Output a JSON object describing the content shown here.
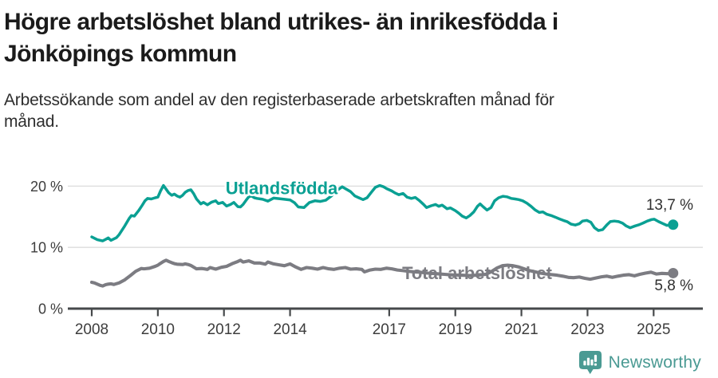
{
  "header": {
    "title_lines": [
      "Högre arbetslöshet bland utrikes- än inrikesfödda i",
      "Jönköpings kommun"
    ],
    "subtitle_lines": [
      "Arbetssökande som andel av den registerbaserade arbetskraften månad för",
      "månad."
    ]
  },
  "chart_data": {
    "type": "line",
    "title": "Högre arbetslöshet bland utrikes- än inrikesfödda i Jönköpings kommun",
    "subtitle": "Arbetssökande som andel av den registerbaserade arbetskraften månad för månad.",
    "unit": "%",
    "grid": "horizontal",
    "legend_position": "inline-labels",
    "xlim": [
      2007.6,
      2026.4
    ],
    "ylim": [
      0,
      22
    ],
    "x_ticks": [
      {
        "value": 2008,
        "label": "2008"
      },
      {
        "value": 2010,
        "label": "2010"
      },
      {
        "value": 2012,
        "label": "2012"
      },
      {
        "value": 2014,
        "label": "2014"
      },
      {
        "value": 2017,
        "label": "2017"
      },
      {
        "value": 2019,
        "label": "2019"
      },
      {
        "value": 2021,
        "label": "2021"
      },
      {
        "value": 2023,
        "label": "2023"
      },
      {
        "value": 2025,
        "label": "2025"
      }
    ],
    "y_ticks": [
      {
        "value": 0,
        "label": "0 %"
      },
      {
        "value": 10,
        "label": "10 %"
      },
      {
        "value": 20,
        "label": "20 %"
      }
    ],
    "colors": {
      "utlandsfodda": "#0aa093",
      "total": "#7c7c82",
      "axis": "#46494b",
      "gridline": "#dcdcdc",
      "brand": "#4a9a93"
    },
    "series": [
      {
        "name": "Utlandsfödda",
        "color": "#0aa093",
        "end_label": "13,7 %",
        "end_value": 13.7,
        "points": [
          [
            2008.0,
            11.7
          ],
          [
            2008.17,
            11.25
          ],
          [
            2008.33,
            11.05
          ],
          [
            2008.42,
            11.3
          ],
          [
            2008.5,
            11.55
          ],
          [
            2008.58,
            11.15
          ],
          [
            2008.75,
            11.6
          ],
          [
            2008.83,
            12.1
          ],
          [
            2009.0,
            13.5
          ],
          [
            2009.13,
            14.7
          ],
          [
            2009.2,
            15.2
          ],
          [
            2009.29,
            15.1
          ],
          [
            2009.42,
            16.0
          ],
          [
            2009.53,
            16.9
          ],
          [
            2009.61,
            17.6
          ],
          [
            2009.69,
            18.0
          ],
          [
            2009.8,
            17.9
          ],
          [
            2009.92,
            18.1
          ],
          [
            2010.0,
            18.2
          ],
          [
            2010.08,
            19.2
          ],
          [
            2010.17,
            20.1
          ],
          [
            2010.25,
            19.5
          ],
          [
            2010.33,
            18.9
          ],
          [
            2010.42,
            18.5
          ],
          [
            2010.5,
            18.7
          ],
          [
            2010.58,
            18.4
          ],
          [
            2010.67,
            18.2
          ],
          [
            2010.75,
            18.5
          ],
          [
            2010.83,
            19.0
          ],
          [
            2010.92,
            19.3
          ],
          [
            2011.0,
            19.4
          ],
          [
            2011.08,
            18.8
          ],
          [
            2011.17,
            17.9
          ],
          [
            2011.3,
            17.1
          ],
          [
            2011.38,
            17.35
          ],
          [
            2011.5,
            16.95
          ],
          [
            2011.63,
            17.4
          ],
          [
            2011.75,
            17.6
          ],
          [
            2011.83,
            17.15
          ],
          [
            2011.96,
            17.35
          ],
          [
            2012.08,
            16.75
          ],
          [
            2012.2,
            17.0
          ],
          [
            2012.3,
            17.35
          ],
          [
            2012.42,
            16.65
          ],
          [
            2012.5,
            16.6
          ],
          [
            2012.58,
            17.0
          ],
          [
            2012.67,
            17.7
          ],
          [
            2012.75,
            18.25
          ],
          [
            2012.83,
            18.4
          ],
          [
            2012.92,
            18.1
          ],
          [
            2013.0,
            18.0
          ],
          [
            2013.17,
            17.85
          ],
          [
            2013.33,
            17.55
          ],
          [
            2013.5,
            18.05
          ],
          [
            2013.67,
            17.95
          ],
          [
            2013.83,
            17.85
          ],
          [
            2014.0,
            17.75
          ],
          [
            2014.13,
            17.3
          ],
          [
            2014.25,
            16.6
          ],
          [
            2014.42,
            16.5
          ],
          [
            2014.58,
            17.3
          ],
          [
            2014.75,
            17.6
          ],
          [
            2014.92,
            17.5
          ],
          [
            2015.08,
            17.7
          ],
          [
            2015.25,
            18.4
          ],
          [
            2015.42,
            19.3
          ],
          [
            2015.58,
            19.9
          ],
          [
            2015.67,
            19.6
          ],
          [
            2015.83,
            19.1
          ],
          [
            2015.96,
            18.4
          ],
          [
            2016.08,
            18.1
          ],
          [
            2016.21,
            17.8
          ],
          [
            2016.33,
            18.1
          ],
          [
            2016.46,
            19.0
          ],
          [
            2016.58,
            19.8
          ],
          [
            2016.71,
            20.1
          ],
          [
            2016.83,
            19.9
          ],
          [
            2016.92,
            19.6
          ],
          [
            2017.08,
            19.2
          ],
          [
            2017.17,
            18.9
          ],
          [
            2017.29,
            18.6
          ],
          [
            2017.42,
            18.8
          ],
          [
            2017.54,
            18.2
          ],
          [
            2017.67,
            18.0
          ],
          [
            2017.79,
            18.15
          ],
          [
            2017.92,
            17.6
          ],
          [
            2018.04,
            17.0
          ],
          [
            2018.13,
            16.5
          ],
          [
            2018.27,
            16.8
          ],
          [
            2018.4,
            17.0
          ],
          [
            2018.5,
            16.7
          ],
          [
            2018.6,
            16.9
          ],
          [
            2018.75,
            16.3
          ],
          [
            2018.85,
            16.45
          ],
          [
            2019.0,
            16.0
          ],
          [
            2019.1,
            15.6
          ],
          [
            2019.21,
            15.1
          ],
          [
            2019.33,
            14.8
          ],
          [
            2019.44,
            15.2
          ],
          [
            2019.56,
            15.8
          ],
          [
            2019.67,
            16.7
          ],
          [
            2019.75,
            17.1
          ],
          [
            2019.85,
            16.6
          ],
          [
            2019.96,
            16.1
          ],
          [
            2020.08,
            16.5
          ],
          [
            2020.19,
            17.6
          ],
          [
            2020.31,
            18.1
          ],
          [
            2020.44,
            18.35
          ],
          [
            2020.56,
            18.25
          ],
          [
            2020.69,
            18.0
          ],
          [
            2020.81,
            17.9
          ],
          [
            2020.92,
            17.8
          ],
          [
            2021.04,
            17.6
          ],
          [
            2021.17,
            17.2
          ],
          [
            2021.29,
            16.7
          ],
          [
            2021.42,
            16.1
          ],
          [
            2021.54,
            15.7
          ],
          [
            2021.65,
            15.8
          ],
          [
            2021.77,
            15.4
          ],
          [
            2021.9,
            15.2
          ],
          [
            2022.02,
            14.95
          ],
          [
            2022.15,
            14.65
          ],
          [
            2022.27,
            14.4
          ],
          [
            2022.38,
            14.2
          ],
          [
            2022.5,
            13.8
          ],
          [
            2022.63,
            13.65
          ],
          [
            2022.75,
            13.85
          ],
          [
            2022.85,
            14.3
          ],
          [
            2022.98,
            14.4
          ],
          [
            2023.1,
            14.1
          ],
          [
            2023.21,
            13.2
          ],
          [
            2023.33,
            12.75
          ],
          [
            2023.46,
            12.9
          ],
          [
            2023.58,
            13.65
          ],
          [
            2023.69,
            14.2
          ],
          [
            2023.81,
            14.3
          ],
          [
            2023.94,
            14.2
          ],
          [
            2024.06,
            13.95
          ],
          [
            2024.17,
            13.5
          ],
          [
            2024.29,
            13.2
          ],
          [
            2024.44,
            13.5
          ],
          [
            2024.56,
            13.7
          ],
          [
            2024.69,
            14.0
          ],
          [
            2024.81,
            14.3
          ],
          [
            2024.94,
            14.55
          ],
          [
            2025.02,
            14.6
          ],
          [
            2025.15,
            14.2
          ],
          [
            2025.27,
            13.9
          ],
          [
            2025.4,
            13.6
          ],
          [
            2025.59,
            13.7
          ]
        ]
      },
      {
        "name": "Total arbetslöshet",
        "color": "#7c7c82",
        "end_label": "5,8 %",
        "end_value": 5.8,
        "points": [
          [
            2008.0,
            4.3
          ],
          [
            2008.08,
            4.2
          ],
          [
            2008.25,
            3.8
          ],
          [
            2008.33,
            3.7
          ],
          [
            2008.42,
            3.9
          ],
          [
            2008.5,
            4.0
          ],
          [
            2008.58,
            4.05
          ],
          [
            2008.67,
            3.95
          ],
          [
            2008.83,
            4.2
          ],
          [
            2009.0,
            4.7
          ],
          [
            2009.17,
            5.4
          ],
          [
            2009.33,
            6.1
          ],
          [
            2009.5,
            6.55
          ],
          [
            2009.58,
            6.5
          ],
          [
            2009.75,
            6.6
          ],
          [
            2009.92,
            6.9
          ],
          [
            2010.0,
            7.1
          ],
          [
            2010.08,
            7.4
          ],
          [
            2010.17,
            7.7
          ],
          [
            2010.25,
            7.9
          ],
          [
            2010.33,
            7.7
          ],
          [
            2010.42,
            7.5
          ],
          [
            2010.5,
            7.35
          ],
          [
            2010.58,
            7.25
          ],
          [
            2010.75,
            7.2
          ],
          [
            2010.83,
            7.3
          ],
          [
            2010.92,
            7.2
          ],
          [
            2011.0,
            7.05
          ],
          [
            2011.17,
            6.5
          ],
          [
            2011.33,
            6.55
          ],
          [
            2011.5,
            6.4
          ],
          [
            2011.58,
            6.7
          ],
          [
            2011.75,
            6.45
          ],
          [
            2011.92,
            6.75
          ],
          [
            2012.08,
            6.9
          ],
          [
            2012.25,
            7.35
          ],
          [
            2012.42,
            7.7
          ],
          [
            2012.5,
            7.9
          ],
          [
            2012.58,
            7.6
          ],
          [
            2012.75,
            7.8
          ],
          [
            2012.92,
            7.45
          ],
          [
            2013.08,
            7.45
          ],
          [
            2013.25,
            7.25
          ],
          [
            2013.33,
            7.6
          ],
          [
            2013.5,
            7.3
          ],
          [
            2013.67,
            7.15
          ],
          [
            2013.83,
            7.0
          ],
          [
            2014.0,
            7.3
          ],
          [
            2014.17,
            6.8
          ],
          [
            2014.33,
            6.4
          ],
          [
            2014.5,
            6.7
          ],
          [
            2014.67,
            6.6
          ],
          [
            2014.83,
            6.45
          ],
          [
            2015.0,
            6.7
          ],
          [
            2015.17,
            6.5
          ],
          [
            2015.33,
            6.4
          ],
          [
            2015.5,
            6.6
          ],
          [
            2015.67,
            6.7
          ],
          [
            2015.83,
            6.45
          ],
          [
            2016.0,
            6.5
          ],
          [
            2016.17,
            6.4
          ],
          [
            2016.25,
            6.0
          ],
          [
            2016.42,
            6.3
          ],
          [
            2016.58,
            6.45
          ],
          [
            2016.75,
            6.4
          ],
          [
            2016.92,
            6.6
          ],
          [
            2017.08,
            6.5
          ],
          [
            2017.25,
            6.3
          ],
          [
            2017.42,
            6.2
          ],
          [
            2017.58,
            6.1
          ],
          [
            2017.75,
            6.0
          ],
          [
            2017.92,
            5.95
          ],
          [
            2018.17,
            5.8
          ],
          [
            2018.42,
            5.7
          ],
          [
            2018.67,
            5.6
          ],
          [
            2018.92,
            5.5
          ],
          [
            2019.17,
            5.45
          ],
          [
            2019.42,
            5.4
          ],
          [
            2019.67,
            5.45
          ],
          [
            2019.92,
            5.6
          ],
          [
            2020.08,
            6.0
          ],
          [
            2020.25,
            6.6
          ],
          [
            2020.42,
            7.0
          ],
          [
            2020.58,
            7.1
          ],
          [
            2020.75,
            7.0
          ],
          [
            2020.92,
            6.8
          ],
          [
            2021.08,
            6.5
          ],
          [
            2021.25,
            6.2
          ],
          [
            2021.42,
            6.0
          ],
          [
            2021.58,
            5.8
          ],
          [
            2021.75,
            5.65
          ],
          [
            2021.92,
            5.55
          ],
          [
            2022.08,
            5.45
          ],
          [
            2022.25,
            5.3
          ],
          [
            2022.42,
            5.1
          ],
          [
            2022.58,
            5.05
          ],
          [
            2022.75,
            5.15
          ],
          [
            2022.92,
            4.95
          ],
          [
            2023.08,
            4.8
          ],
          [
            2023.25,
            5.0
          ],
          [
            2023.42,
            5.2
          ],
          [
            2023.58,
            5.3
          ],
          [
            2023.75,
            5.1
          ],
          [
            2023.92,
            5.3
          ],
          [
            2024.08,
            5.45
          ],
          [
            2024.25,
            5.55
          ],
          [
            2024.42,
            5.35
          ],
          [
            2024.58,
            5.6
          ],
          [
            2024.75,
            5.8
          ],
          [
            2024.92,
            5.95
          ],
          [
            2025.08,
            5.65
          ],
          [
            2025.25,
            5.75
          ],
          [
            2025.42,
            5.7
          ],
          [
            2025.59,
            5.8
          ]
        ]
      }
    ]
  },
  "footer": {
    "brand": "Newsworthy"
  }
}
